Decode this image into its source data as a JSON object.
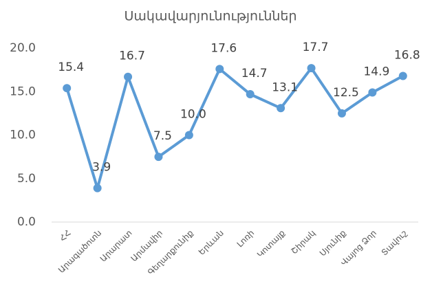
{
  "chart_data": {
    "type": "line",
    "title": "Սակավարյունություններ",
    "categories": [
      "ՀՀ",
      "Արագածոտն",
      "Արարատ",
      "Արմավիր",
      "Գեղարքունիք",
      "Երևան",
      "Լոռի",
      "Կոտայք",
      "Շիրակ",
      "Սյունիք",
      "Վայոց Ձոր",
      "Տավուշ"
    ],
    "series": [
      {
        "name": "Սակավարյունություններ",
        "color": "#5b9bd5",
        "values": [
          15.4,
          3.9,
          16.7,
          7.5,
          10.0,
          17.6,
          14.7,
          13.1,
          17.7,
          12.5,
          14.9,
          16.8
        ],
        "value_labels": [
          "15.4",
          "3.9",
          "16.7",
          "7.5",
          "10.0",
          "17.6",
          "14.7",
          "13.1",
          "17.7",
          "12.5",
          "14.9",
          "16.8"
        ]
      }
    ],
    "ylim": [
      0,
      20
    ],
    "yticks": [
      {
        "value": 0,
        "label": "0.0"
      },
      {
        "value": 5,
        "label": "5.0"
      },
      {
        "value": 10,
        "label": "10.0"
      },
      {
        "value": 15,
        "label": "15.0"
      },
      {
        "value": 20,
        "label": "20.0"
      }
    ],
    "grid": false
  }
}
